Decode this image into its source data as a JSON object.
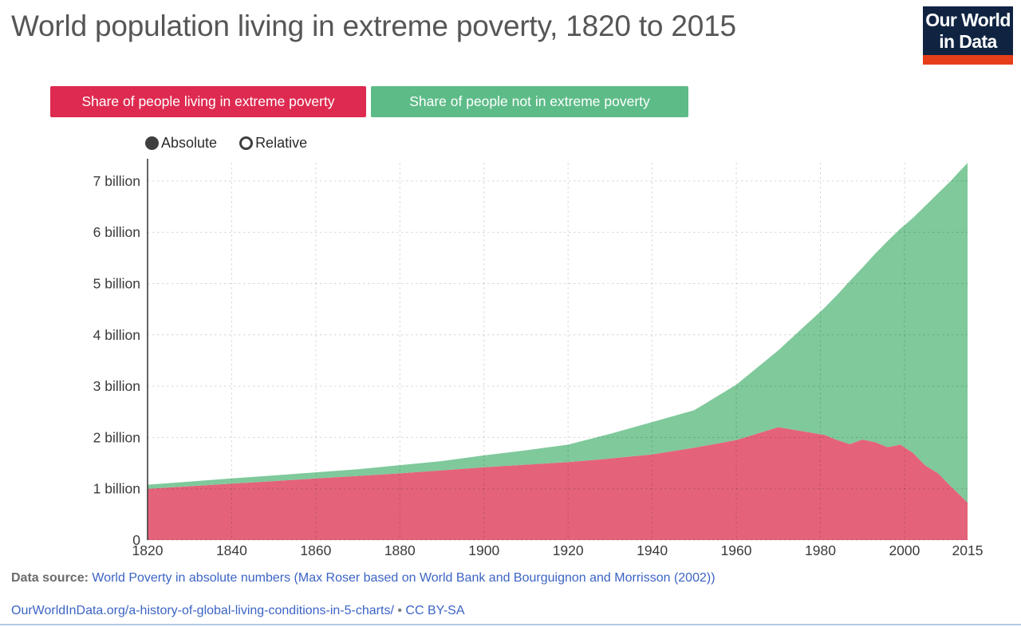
{
  "header": {
    "title": "World population living in extreme poverty, 1820 to 2015",
    "logo": {
      "line1": "Our World",
      "line2": "in Data",
      "bg_color": "#102442",
      "accent_color": "#E53E19"
    }
  },
  "legend": {
    "items": [
      {
        "label": "Share of people living in extreme poverty",
        "color": "#DE2A50"
      },
      {
        "label": "Share of people not in extreme poverty",
        "color": "#5DBB87"
      }
    ]
  },
  "controls": {
    "options": [
      {
        "label": "Absolute",
        "selected": true
      },
      {
        "label": "Relative",
        "selected": false
      }
    ]
  },
  "chart_data": {
    "type": "area",
    "stacked": true,
    "title": "World population living in extreme poverty, 1820 to 2015",
    "xlabel": "",
    "ylabel": "",
    "xlim": [
      1820,
      2015
    ],
    "ylim": [
      0,
      7.5
    ],
    "grid": true,
    "x": [
      1820,
      1830,
      1840,
      1850,
      1860,
      1870,
      1880,
      1890,
      1900,
      1910,
      1920,
      1930,
      1940,
      1950,
      1960,
      1970,
      1981,
      1984,
      1987,
      1990,
      1993,
      1996,
      1999,
      2002,
      2005,
      2008,
      2011,
      2013,
      2015
    ],
    "series": [
      {
        "name": "Share of people living in extreme poverty",
        "color": "#E4637A",
        "values": [
          1.0,
          1.05,
          1.1,
          1.15,
          1.2,
          1.25,
          1.3,
          1.36,
          1.42,
          1.47,
          1.52,
          1.59,
          1.67,
          1.8,
          1.95,
          2.2,
          2.05,
          1.95,
          1.87,
          1.96,
          1.91,
          1.81,
          1.86,
          1.7,
          1.45,
          1.3,
          1.05,
          0.89,
          0.73
        ]
      },
      {
        "name": "Share of people not in extreme poverty",
        "color": "#7FC99B",
        "values": [
          0.08,
          0.09,
          0.1,
          0.11,
          0.12,
          0.13,
          0.16,
          0.18,
          0.23,
          0.28,
          0.34,
          0.48,
          0.63,
          0.73,
          1.08,
          1.5,
          2.48,
          2.83,
          3.18,
          3.35,
          3.67,
          4.02,
          4.21,
          4.58,
          5.07,
          5.46,
          5.95,
          6.29,
          6.62
        ]
      }
    ],
    "stack_totals_world_population": [
      1.08,
      1.14,
      1.2,
      1.26,
      1.32,
      1.38,
      1.46,
      1.54,
      1.65,
      1.75,
      1.86,
      2.07,
      2.3,
      2.53,
      3.03,
      3.7,
      4.53,
      4.78,
      5.05,
      5.31,
      5.58,
      5.83,
      6.07,
      6.28,
      6.52,
      6.76,
      7.0,
      7.18,
      7.35
    ],
    "yticks": [
      {
        "value": 0,
        "label": "0"
      },
      {
        "value": 1,
        "label": "1 billion"
      },
      {
        "value": 2,
        "label": "2 billion"
      },
      {
        "value": 3,
        "label": "3 billion"
      },
      {
        "value": 4,
        "label": "4 billion"
      },
      {
        "value": 5,
        "label": "5 billion"
      },
      {
        "value": 6,
        "label": "6 billion"
      },
      {
        "value": 7,
        "label": "7 billion"
      }
    ],
    "xticks": [
      1820,
      1840,
      1860,
      1880,
      1900,
      1920,
      1940,
      1960,
      1980,
      2000,
      2015
    ],
    "x_gridlines": [
      1840,
      1860,
      1880,
      1900,
      1920,
      1940,
      1960,
      1980,
      2000
    ],
    "legend_position": "top"
  },
  "footer": {
    "datasource_label": "Data source:",
    "datasource_link": "World Poverty in absolute numbers (Max Roser based on World Bank and Bourguignon and Morrisson (2002))",
    "url": "OurWorldInData.org/a-history-of-global-living-conditions-in-5-charts/",
    "separator": "•",
    "license": "CC BY-SA"
  }
}
